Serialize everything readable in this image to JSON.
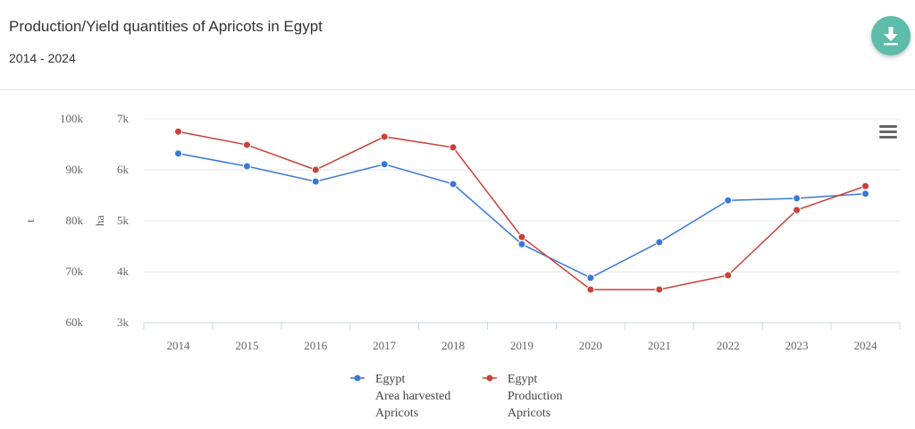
{
  "header": {
    "title": "Production/Yield quantities of Apricots in Egypt",
    "subtitle": "2014 - 2024"
  },
  "icons": {
    "download": "download-icon",
    "menu": "hamburger-menu-icon"
  },
  "chart_data": {
    "type": "line",
    "title": "Production/Yield quantities of Apricots in Egypt",
    "subtitle": "2014 - 2024",
    "categories": [
      "2014",
      "2015",
      "2016",
      "2017",
      "2018",
      "2019",
      "2020",
      "2021",
      "2022",
      "2023",
      "2024"
    ],
    "axes": [
      {
        "label": "t",
        "ticks": [
          "60k",
          "70k",
          "80k",
          "90k",
          "100k"
        ],
        "range": [
          60000,
          100000
        ]
      },
      {
        "label": "ha",
        "ticks": [
          "3k",
          "4k",
          "5k",
          "6k",
          "7k"
        ],
        "range": [
          3000,
          7000
        ]
      }
    ],
    "series": [
      {
        "name": "Egypt Area harvested Apricots",
        "legend": [
          "Egypt",
          "Area harvested",
          "Apricots"
        ],
        "axis": 1,
        "color": "#3a78d6",
        "values": [
          6320,
          6070,
          5770,
          6110,
          5720,
          4540,
          3880,
          4580,
          5400,
          5440,
          5530
        ]
      },
      {
        "name": "Egypt Production Apricots",
        "legend": [
          "Egypt",
          "Production",
          "Apricots"
        ],
        "axis": 0,
        "color": "#c8413a",
        "values": [
          97500,
          94900,
          90000,
          96500,
          94400,
          76800,
          66500,
          66500,
          69300,
          82100,
          86800
        ]
      }
    ],
    "grid": true,
    "legend_position": "bottom"
  }
}
